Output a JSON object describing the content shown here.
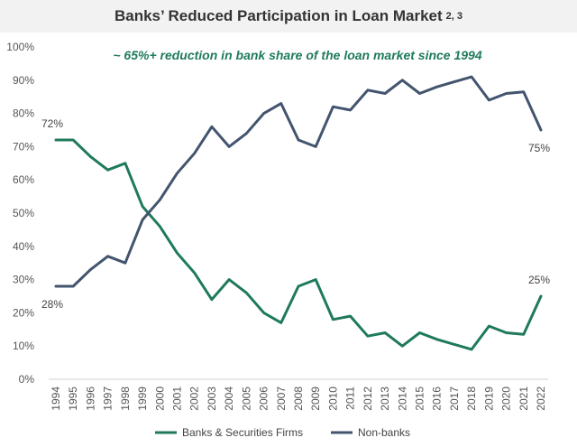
{
  "title": "Banks’ Reduced Participation in Loan Market",
  "title_superscript": "2, 3",
  "colors": {
    "banks": "#1f7a5c",
    "nonbanks": "#43546e",
    "title_bg": "#f2f2f2"
  },
  "chart_data": {
    "type": "line",
    "title": "Banks’ Reduced Participation in Loan Market",
    "annotation": "~ 65%+ reduction in bank share of the loan market since 1994",
    "x": [
      "1994",
      "1995",
      "1996",
      "1997",
      "1998",
      "1999",
      "2000",
      "2001",
      "2002",
      "2003",
      "2004",
      "2005",
      "2006",
      "2007",
      "2008",
      "2009",
      "2010",
      "2011",
      "2012",
      "2013",
      "2014",
      "2015",
      "2016",
      "2017",
      "2018",
      "2019",
      "2020",
      "2021",
      "2022"
    ],
    "y_ticks": [
      "0%",
      "10%",
      "20%",
      "30%",
      "40%",
      "50%",
      "60%",
      "70%",
      "80%",
      "90%",
      "100%"
    ],
    "ylim": [
      0,
      100
    ],
    "grid": false,
    "legend_position": "bottom",
    "series": [
      {
        "name": "Banks & Securities Firms",
        "color": "#1f7a5c",
        "values": [
          72,
          72,
          67,
          63,
          65,
          52,
          46,
          38,
          32,
          24,
          30,
          26,
          20,
          17,
          28,
          30,
          18,
          19,
          13,
          14,
          10,
          14,
          12,
          10.5,
          9,
          16,
          14,
          13.5,
          25
        ]
      },
      {
        "name": "Non-banks",
        "color": "#43546e",
        "values": [
          28,
          28,
          33,
          37,
          35,
          48,
          54,
          62,
          68,
          76,
          70,
          74,
          80,
          83,
          72,
          70,
          82,
          81,
          87,
          86,
          90,
          86,
          88,
          89.5,
          91,
          84,
          86,
          86.5,
          75
        ]
      }
    ],
    "data_labels": [
      "72%",
      "28%",
      "75%",
      "25%"
    ]
  }
}
